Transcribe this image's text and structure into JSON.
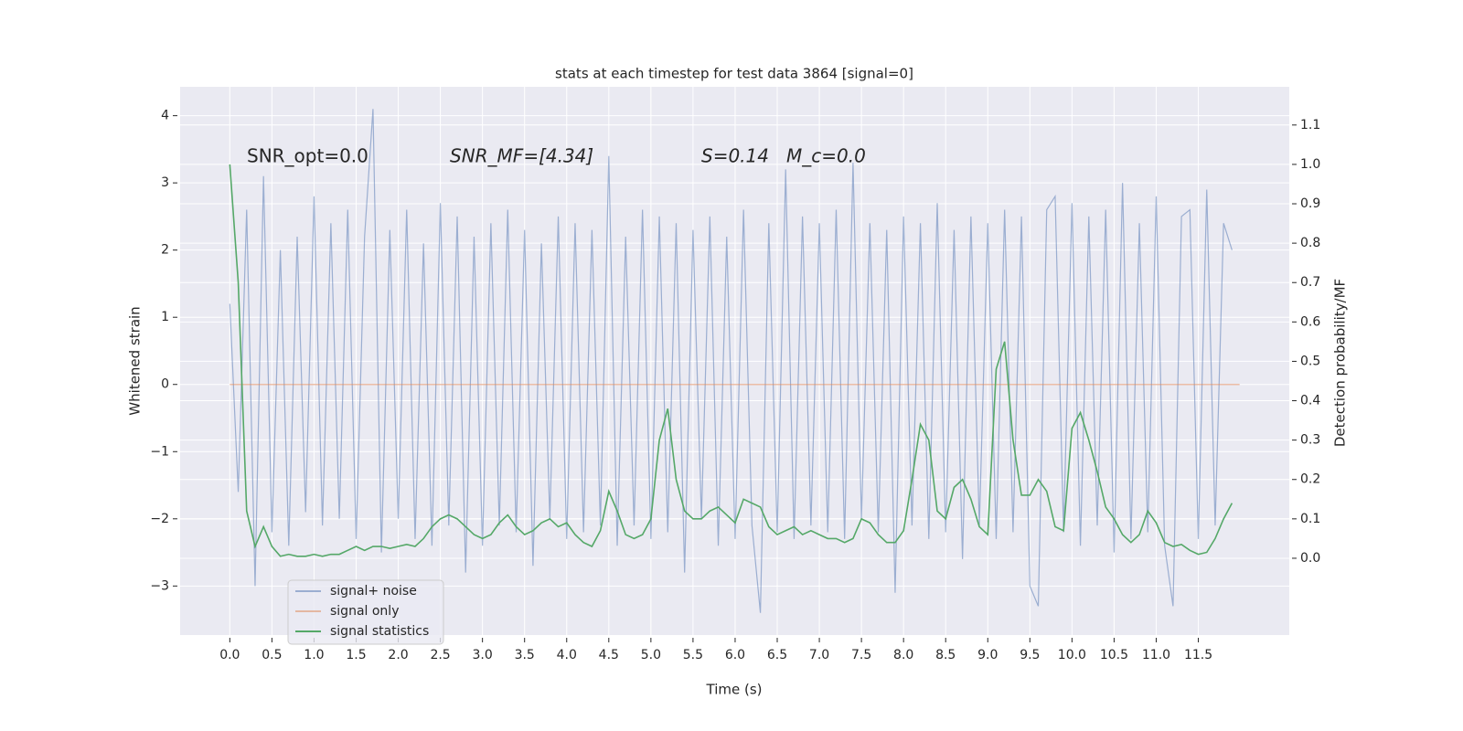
{
  "chart_data": {
    "type": "line",
    "title": "stats at each timestep for test data 3864 [signal=0]",
    "xlabel": "Time (s)",
    "ylabel": "Whitened strain",
    "y2label": "Detection probability/MF",
    "annotations": [
      "SNR_opt=0.0",
      "SNR_MF=[4.34]",
      "S=0.14",
      "M_c=0.0"
    ],
    "xlim": [
      -0.59,
      12.58
    ],
    "ylim": [
      -3.73,
      4.43
    ],
    "y2lim": [
      -0.195,
      1.197
    ],
    "xticks": [
      {
        "value": 0,
        "label": "0.0"
      },
      {
        "value": 0.5,
        "label": "0.5"
      },
      {
        "value": 1,
        "label": "1.0"
      },
      {
        "value": 1.5,
        "label": "1.5"
      },
      {
        "value": 2,
        "label": "2.0"
      },
      {
        "value": 2.5,
        "label": "2.5"
      },
      {
        "value": 3,
        "label": "3.0"
      },
      {
        "value": 3.5,
        "label": "3.5"
      },
      {
        "value": 4,
        "label": "4.0"
      },
      {
        "value": 4.5,
        "label": "4.5"
      },
      {
        "value": 5,
        "label": "5.0"
      },
      {
        "value": 5.5,
        "label": "5.5"
      },
      {
        "value": 6,
        "label": "6.0"
      },
      {
        "value": 6.5,
        "label": "6.5"
      },
      {
        "value": 7,
        "label": "7.0"
      },
      {
        "value": 7.5,
        "label": "7.5"
      },
      {
        "value": 8,
        "label": "8.0"
      },
      {
        "value": 8.5,
        "label": "8.5"
      },
      {
        "value": 9,
        "label": "9.0"
      },
      {
        "value": 9.5,
        "label": "9.5"
      },
      {
        "value": 10,
        "label": "10.0"
      },
      {
        "value": 10.5,
        "label": "10.5"
      },
      {
        "value": 11,
        "label": "11.0"
      },
      {
        "value": 11.5,
        "label": "11.5"
      }
    ],
    "yticks": [
      {
        "value": -3,
        "label": "−3"
      },
      {
        "value": -2,
        "label": "−2"
      },
      {
        "value": -1,
        "label": "−1"
      },
      0,
      1,
      2,
      3,
      4
    ],
    "y2ticks": [
      {
        "value": 0,
        "label": "0.0"
      },
      {
        "value": 0.1,
        "label": "0.1"
      },
      {
        "value": 0.2,
        "label": "0.2"
      },
      {
        "value": 0.3,
        "label": "0.3"
      },
      {
        "value": 0.4,
        "label": "0.4"
      },
      {
        "value": 0.5,
        "label": "0.5"
      },
      {
        "value": 0.6,
        "label": "0.6"
      },
      {
        "value": 0.7,
        "label": "0.7"
      },
      {
        "value": 0.8,
        "label": "0.8"
      },
      {
        "value": 0.9,
        "label": "0.9"
      },
      {
        "value": 1,
        "label": "1.0"
      },
      {
        "value": 1.1,
        "label": "1.1"
      }
    ],
    "grid": true,
    "legend": "lower left",
    "series": [
      {
        "name": "signal+ noise",
        "color": "#4c72b0",
        "x": [
          0,
          0.1,
          0.2,
          0.3,
          0.4,
          0.5,
          0.6,
          0.7,
          0.8,
          0.9,
          1,
          1.1,
          1.2,
          1.3,
          1.4,
          1.5,
          1.6,
          1.7,
          1.8,
          1.9,
          2,
          2.1,
          2.2,
          2.3,
          2.4,
          2.5,
          2.6,
          2.7,
          2.8,
          2.9,
          3,
          3.1,
          3.2,
          3.3,
          3.4,
          3.5,
          3.6,
          3.7,
          3.8,
          3.9,
          4,
          4.1,
          4.2,
          4.3,
          4.4,
          4.5,
          4.6,
          4.7,
          4.8,
          4.9,
          5,
          5.1,
          5.2,
          5.3,
          5.4,
          5.5,
          5.6,
          5.7,
          5.8,
          5.9,
          6,
          6.1,
          6.2,
          6.3,
          6.4,
          6.5,
          6.6,
          6.7,
          6.8,
          6.9,
          7,
          7.1,
          7.2,
          7.3,
          7.4,
          7.5,
          7.6,
          7.7,
          7.8,
          7.9,
          8,
          8.1,
          8.2,
          8.3,
          8.4,
          8.5,
          8.6,
          8.7,
          8.8,
          8.9,
          9,
          9.1,
          9.2,
          9.3,
          9.4,
          9.5,
          9.6,
          9.7,
          9.8,
          9.9,
          10,
          10.1,
          10.2,
          10.3,
          10.4,
          10.5,
          10.6,
          10.7,
          10.8,
          10.9,
          11,
          11.1,
          11.2,
          11.3,
          11.4,
          11.5,
          11.6,
          11.7,
          11.8,
          11.9
        ],
        "values": [
          1.2,
          -1.6,
          2.6,
          -3.0,
          3.1,
          -2.2,
          2.0,
          -2.4,
          2.2,
          -1.9,
          2.8,
          -2.1,
          2.4,
          -2.0,
          2.6,
          -2.3,
          2.2,
          4.1,
          -2.5,
          2.3,
          -2.0,
          2.6,
          -2.3,
          2.1,
          -2.4,
          2.7,
          -2.1,
          2.5,
          -2.8,
          2.2,
          -2.4,
          2.4,
          -2.1,
          2.6,
          -2.2,
          2.3,
          -2.7,
          2.1,
          -2.0,
          2.5,
          -2.3,
          2.4,
          -2.2,
          2.3,
          -2.1,
          3.4,
          -2.4,
          2.2,
          -2.1,
          2.6,
          -2.3,
          2.5,
          -2.2,
          2.4,
          -2.8,
          2.3,
          -2.0,
          2.5,
          -2.4,
          2.2,
          -2.3,
          2.6,
          -2.1,
          -3.4,
          2.4,
          -2.2,
          3.2,
          -2.3,
          2.5,
          -2.1,
          2.4,
          -2.2,
          2.6,
          -2.3,
          3.3,
          -2.0,
          2.4,
          -2.2,
          2.3,
          -3.1,
          2.5,
          -2.1,
          2.4,
          -2.3,
          2.7,
          -2.2,
          2.3,
          -2.6,
          2.5,
          -2.1,
          2.4,
          -2.3,
          2.6,
          -2.2,
          2.5,
          -3.0,
          -3.3,
          2.6,
          2.8,
          -2.2,
          2.7,
          -2.4,
          2.5,
          -2.1,
          2.6,
          -2.5,
          3.0,
          -2.3,
          2.4,
          -2.2,
          2.8,
          -2.4,
          -3.3,
          2.5,
          2.6,
          -2.3,
          2.9,
          -2.1,
          2.4,
          2.0
        ]
      },
      {
        "name": "signal only",
        "color": "#dd8452",
        "x": [
          0,
          11.99
        ],
        "values": [
          0,
          0
        ]
      },
      {
        "name": "signal statistics",
        "color": "#55a868",
        "axis": "y2",
        "x": [
          0,
          0.1,
          0.2,
          0.3,
          0.4,
          0.5,
          0.6,
          0.7,
          0.8,
          0.9,
          1,
          1.1,
          1.2,
          1.3,
          1.4,
          1.5,
          1.6,
          1.7,
          1.8,
          1.9,
          2,
          2.1,
          2.2,
          2.3,
          2.4,
          2.5,
          2.6,
          2.7,
          2.8,
          2.9,
          3,
          3.1,
          3.2,
          3.3,
          3.4,
          3.5,
          3.6,
          3.7,
          3.8,
          3.9,
          4,
          4.1,
          4.2,
          4.3,
          4.4,
          4.5,
          4.6,
          4.7,
          4.8,
          4.9,
          5,
          5.1,
          5.2,
          5.3,
          5.4,
          5.5,
          5.6,
          5.7,
          5.8,
          5.9,
          6,
          6.1,
          6.2,
          6.3,
          6.4,
          6.5,
          6.6,
          6.7,
          6.8,
          6.9,
          7,
          7.1,
          7.2,
          7.3,
          7.4,
          7.5,
          7.6,
          7.7,
          7.8,
          7.9,
          8,
          8.1,
          8.2,
          8.3,
          8.4,
          8.5,
          8.6,
          8.7,
          8.8,
          8.9,
          9,
          9.1,
          9.2,
          9.3,
          9.4,
          9.5,
          9.6,
          9.7,
          9.8,
          9.9,
          10,
          10.1,
          10.2,
          10.3,
          10.4,
          10.5,
          10.6,
          10.7,
          10.8,
          10.9,
          11,
          11.1,
          11.2,
          11.3,
          11.4,
          11.5,
          11.6,
          11.7,
          11.8,
          11.9
        ],
        "values": [
          1.0,
          0.7,
          0.12,
          0.03,
          0.08,
          0.03,
          0.005,
          0.01,
          0.005,
          0.005,
          0.01,
          0.005,
          0.01,
          0.01,
          0.02,
          0.03,
          0.02,
          0.03,
          0.03,
          0.025,
          0.03,
          0.035,
          0.03,
          0.05,
          0.08,
          0.1,
          0.11,
          0.1,
          0.08,
          0.06,
          0.05,
          0.06,
          0.09,
          0.11,
          0.08,
          0.06,
          0.07,
          0.09,
          0.1,
          0.08,
          0.09,
          0.06,
          0.04,
          0.03,
          0.07,
          0.17,
          0.12,
          0.06,
          0.05,
          0.06,
          0.1,
          0.3,
          0.38,
          0.2,
          0.12,
          0.1,
          0.1,
          0.12,
          0.13,
          0.11,
          0.09,
          0.15,
          0.14,
          0.13,
          0.08,
          0.06,
          0.07,
          0.08,
          0.06,
          0.07,
          0.06,
          0.05,
          0.05,
          0.04,
          0.05,
          0.1,
          0.09,
          0.06,
          0.04,
          0.04,
          0.07,
          0.2,
          0.34,
          0.3,
          0.12,
          0.1,
          0.18,
          0.2,
          0.15,
          0.08,
          0.06,
          0.48,
          0.55,
          0.3,
          0.16,
          0.16,
          0.2,
          0.17,
          0.08,
          0.07,
          0.33,
          0.37,
          0.3,
          0.22,
          0.13,
          0.1,
          0.06,
          0.04,
          0.06,
          0.12,
          0.09,
          0.04,
          0.03,
          0.035,
          0.02,
          0.01,
          0.015,
          0.05,
          0.1,
          0.14
        ]
      }
    ]
  }
}
